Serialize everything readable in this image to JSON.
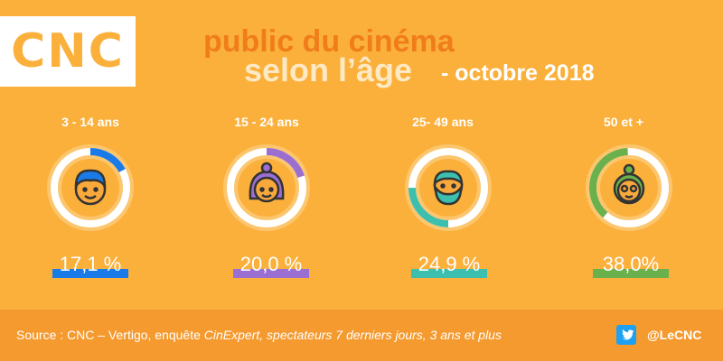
{
  "logo": "CNC",
  "title": {
    "line1": "public du cinéma",
    "line2": "selon l’âge",
    "line3": "- octobre 2018"
  },
  "colors": {
    "background": "#fbb03b",
    "footer": "#f59a2f",
    "blue": "#1a7be8",
    "purple": "#9b6fd1",
    "teal": "#3cbfae",
    "green": "#6ab04c"
  },
  "chart_data": {
    "type": "pie",
    "unit": "%",
    "categories": [
      "3 - 14 ans",
      "15 - 24 ans",
      "25- 49 ans",
      "50 et +"
    ],
    "values": [
      17.1,
      20.0,
      24.9,
      38.0
    ],
    "labels": [
      "17,1 %",
      "20,0 %",
      "24,9 %",
      "38,0%"
    ],
    "colors": [
      "#1a7be8",
      "#9b6fd1",
      "#3cbfae",
      "#6ab04c"
    ],
    "icons": [
      "child-face-icon",
      "young-woman-face-icon",
      "bearded-man-face-icon",
      "elderly-woman-face-icon"
    ]
  },
  "footer": {
    "source_prefix": "Source : CNC – Vertigo, enquête ",
    "source_italic": "CinExpert, spectateurs 7 derniers jours, 3 ans et plus",
    "twitter_icon": "twitter-icon",
    "handle": "@LeCNC"
  }
}
